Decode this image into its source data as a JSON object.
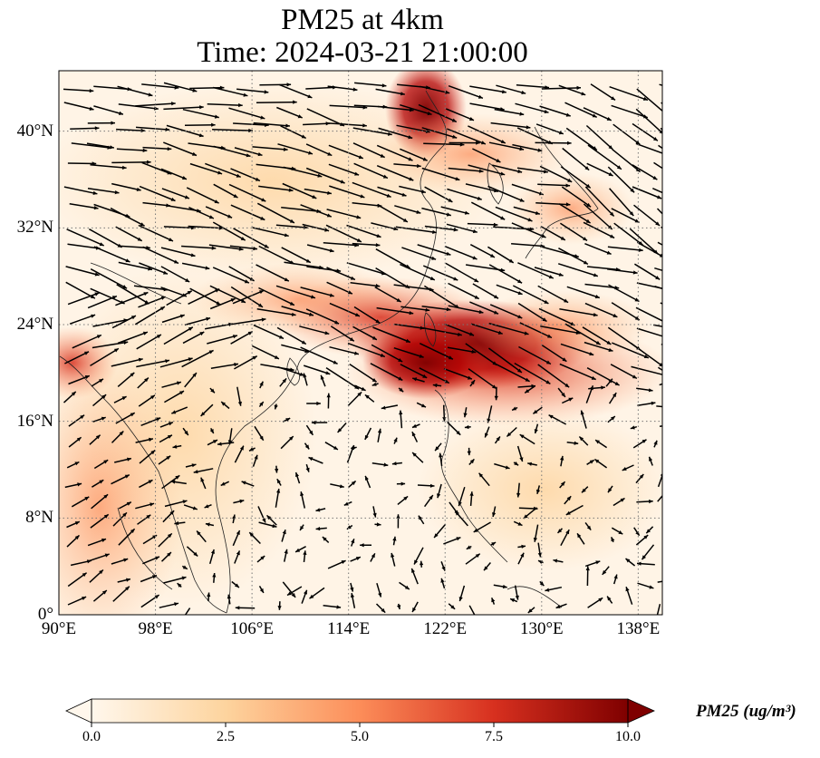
{
  "title": {
    "line1": "PM25 at 4km",
    "line2": "Time: 2024-03-21 21:00:00"
  },
  "map": {
    "variable": "PM25",
    "extent": {
      "lon_min": 90,
      "lon_max": 140,
      "lat_min": 0,
      "lat_max": 45
    },
    "gridlines": "dotted",
    "lon_ticks": [
      {
        "value": 90,
        "label": "90°E"
      },
      {
        "value": 98,
        "label": "98°E"
      },
      {
        "value": 106,
        "label": "106°E"
      },
      {
        "value": 114,
        "label": "114°E"
      },
      {
        "value": 122,
        "label": "122°E"
      },
      {
        "value": 130,
        "label": "130°E"
      },
      {
        "value": 138,
        "label": "138°E"
      }
    ],
    "lat_ticks": [
      {
        "value": 0,
        "label": "0°"
      },
      {
        "value": 8,
        "label": "8°N"
      },
      {
        "value": 16,
        "label": "16°N"
      },
      {
        "value": 24,
        "label": "24°N"
      },
      {
        "value": 32,
        "label": "32°N"
      },
      {
        "value": 40,
        "label": "40°N"
      }
    ],
    "overlay": "wind vectors"
  },
  "colorbar": {
    "colormap": "OrRd",
    "colors": [
      "#fff7ec",
      "#fdd49e",
      "#fc8d59",
      "#d7301f",
      "#7f0000"
    ],
    "min": 0,
    "max": 10,
    "extend": "both",
    "ticks": [
      "0.0",
      "2.5",
      "5.0",
      "7.5",
      "10.0"
    ],
    "label": "PM25 (ug/m³)"
  }
}
